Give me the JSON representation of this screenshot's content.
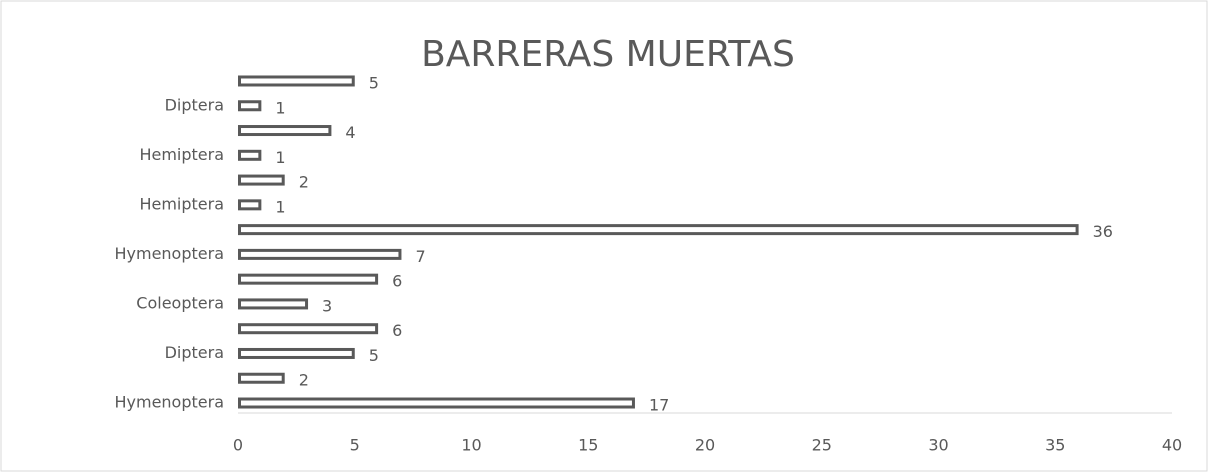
{
  "chart_data": {
    "type": "hbar",
    "title": "BARRERAS MUERTAS",
    "categories": [
      "Hymenoptera",
      null,
      "Diptera",
      null,
      "Coleoptera",
      null,
      "Hymenoptera",
      null,
      "Hemiptera",
      null,
      "Hemiptera",
      null,
      "Diptera",
      null
    ],
    "values": [
      17,
      2,
      5,
      6,
      3,
      6,
      7,
      36,
      1,
      2,
      1,
      4,
      1,
      5
    ],
    "color": "#595959",
    "xlim": [
      0,
      40
    ],
    "xticks": [
      0,
      5,
      10,
      15,
      20,
      25,
      30,
      35,
      40
    ],
    "grid": false
  }
}
